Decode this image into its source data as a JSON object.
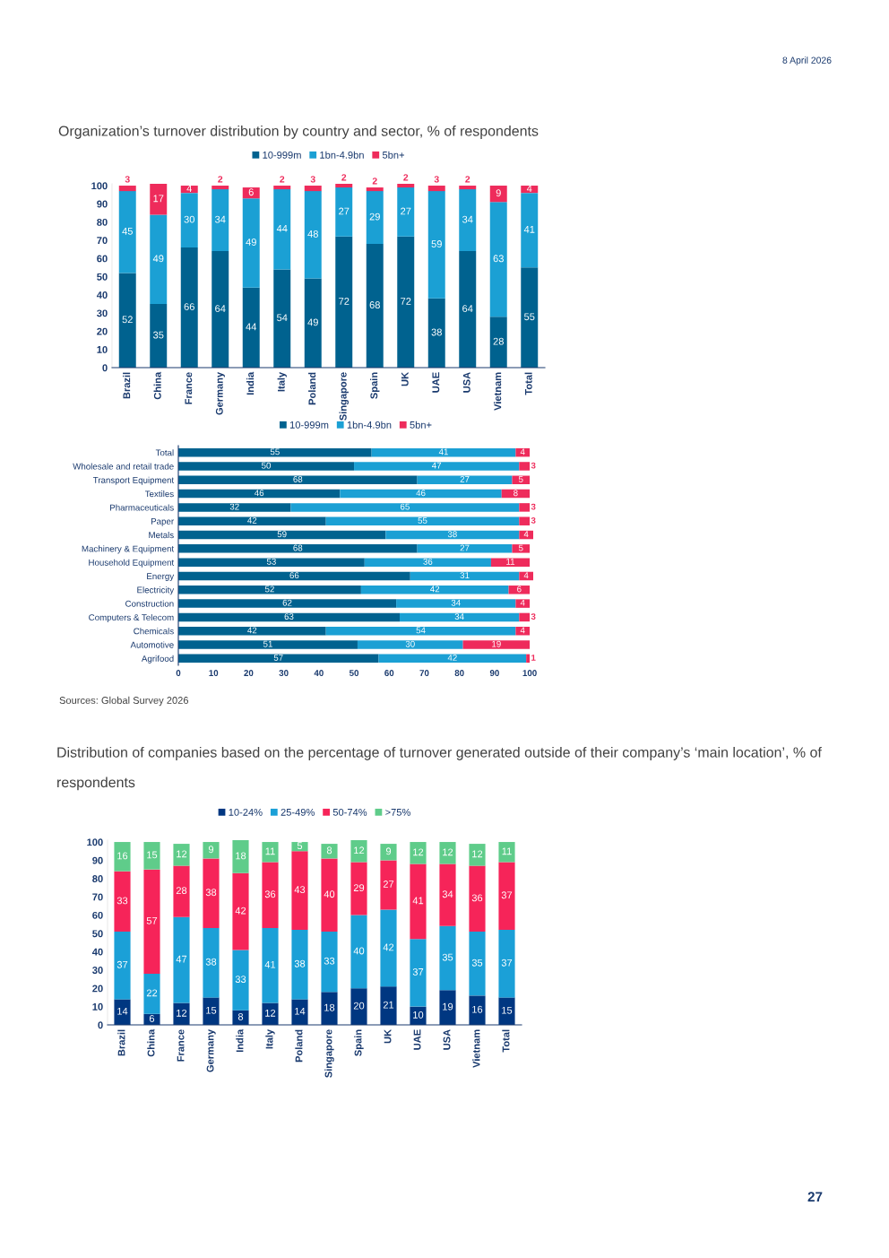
{
  "chart_data": [
    {
      "type": "bar",
      "title": "Organization’s turnover distribution by country and sector, % of respondents",
      "stacked": true,
      "data_labels": true,
      "legend": "top",
      "grid": false,
      "annotations": [
        "8 April 2026"
      ],
      "categories": [
        "Brazil",
        "China",
        "France",
        "Germany",
        "India",
        "Italy",
        "Poland",
        "Singapore",
        "Spain",
        "UK",
        "UAE",
        "USA",
        "Vietnam",
        "Total"
      ],
      "ylim": [
        0,
        101
      ],
      "yticks": [
        0,
        10,
        20,
        30,
        40,
        50,
        60,
        70,
        80,
        90,
        100
      ],
      "series": [
        {
          "name": "10-999m",
          "color": "#00628f",
          "values": [
            52,
            35,
            66,
            64,
            44,
            54,
            49,
            72,
            68,
            72,
            38,
            64,
            28,
            55
          ]
        },
        {
          "name": "1bn-4.9bn",
          "color": "#1ba0d4",
          "values": [
            45,
            49,
            30,
            34,
            49,
            44,
            48,
            27,
            29,
            27,
            59,
            34,
            63,
            41
          ]
        },
        {
          "name": "5bn+",
          "color": "#ee2b5b",
          "values": [
            3,
            17,
            4,
            2,
            6,
            2,
            3,
            2,
            2,
            2,
            3,
            2,
            9,
            4
          ]
        }
      ]
    },
    {
      "type": "bar",
      "orientation": "horizontal",
      "stacked": true,
      "data_labels": true,
      "legend": "top",
      "grid": false,
      "annotations": [
        "Sources: Global Survey 2026"
      ],
      "categories": [
        "Total",
        "Wholesale and retail trade",
        "Transport Equipment",
        "Textiles",
        "Pharmaceuticals",
        "Paper",
        "Metals",
        "Machinery & Equipment",
        "Household Equipment",
        "Energy",
        "Electricity",
        "Construction",
        "Computers & Telecom",
        "Chemicals",
        "Automotive",
        "Agrifood"
      ],
      "xlim": [
        0,
        101
      ],
      "xticks": [
        0,
        10,
        20,
        30,
        40,
        50,
        60,
        70,
        80,
        90,
        100
      ],
      "series": [
        {
          "name": "10-999m",
          "color": "#00628f",
          "values": [
            55,
            50,
            68,
            46,
            32,
            42,
            59,
            68,
            53,
            66,
            52,
            62,
            63,
            42,
            51,
            57
          ]
        },
        {
          "name": "1bn-4.9bn",
          "color": "#1ba0d4",
          "values": [
            41,
            47,
            27,
            46,
            65,
            55,
            38,
            27,
            36,
            31,
            42,
            34,
            34,
            54,
            30,
            42
          ]
        },
        {
          "name": "5bn+",
          "color": "#ee2b5b",
          "values": [
            4,
            3,
            5,
            8,
            3,
            3,
            4,
            5,
            11,
            4,
            6,
            4,
            3,
            4,
            19,
            1
          ]
        }
      ]
    },
    {
      "type": "bar",
      "title": "Distribution of companies based on the percentage of turnover generated outside of their company’s ‘main location’, % of respondents",
      "stacked": true,
      "data_labels": true,
      "legend": "top",
      "grid": false,
      "annotations": [
        "27"
      ],
      "categories": [
        "Brazil",
        "China",
        "France",
        "Germany",
        "India",
        "Italy",
        "Poland",
        "Singapore",
        "Spain",
        "UK",
        "UAE",
        "USA",
        "Vietnam",
        "Total"
      ],
      "ylim": [
        0,
        101
      ],
      "yticks": [
        0,
        10,
        20,
        30,
        40,
        50,
        60,
        70,
        80,
        90,
        100
      ],
      "series": [
        {
          "name": "10-24%",
          "color": "#003781",
          "values": [
            14,
            6,
            12,
            15,
            8,
            12,
            14,
            18,
            20,
            21,
            10,
            19,
            16,
            15
          ]
        },
        {
          "name": "25-49%",
          "color": "#1ba0d7",
          "values": [
            37,
            22,
            47,
            38,
            33,
            41,
            38,
            33,
            40,
            42,
            37,
            35,
            35,
            37
          ]
        },
        {
          "name": "50-74%",
          "color": "#f62459",
          "values": [
            33,
            57,
            28,
            38,
            42,
            36,
            43,
            40,
            29,
            27,
            41,
            34,
            36,
            37
          ]
        },
        {
          "name": ">75%",
          "color": "#5fcc8a",
          "values": [
            16,
            15,
            12,
            9,
            18,
            11,
            5,
            8,
            12,
            9,
            12,
            12,
            12,
            11
          ]
        }
      ]
    }
  ]
}
